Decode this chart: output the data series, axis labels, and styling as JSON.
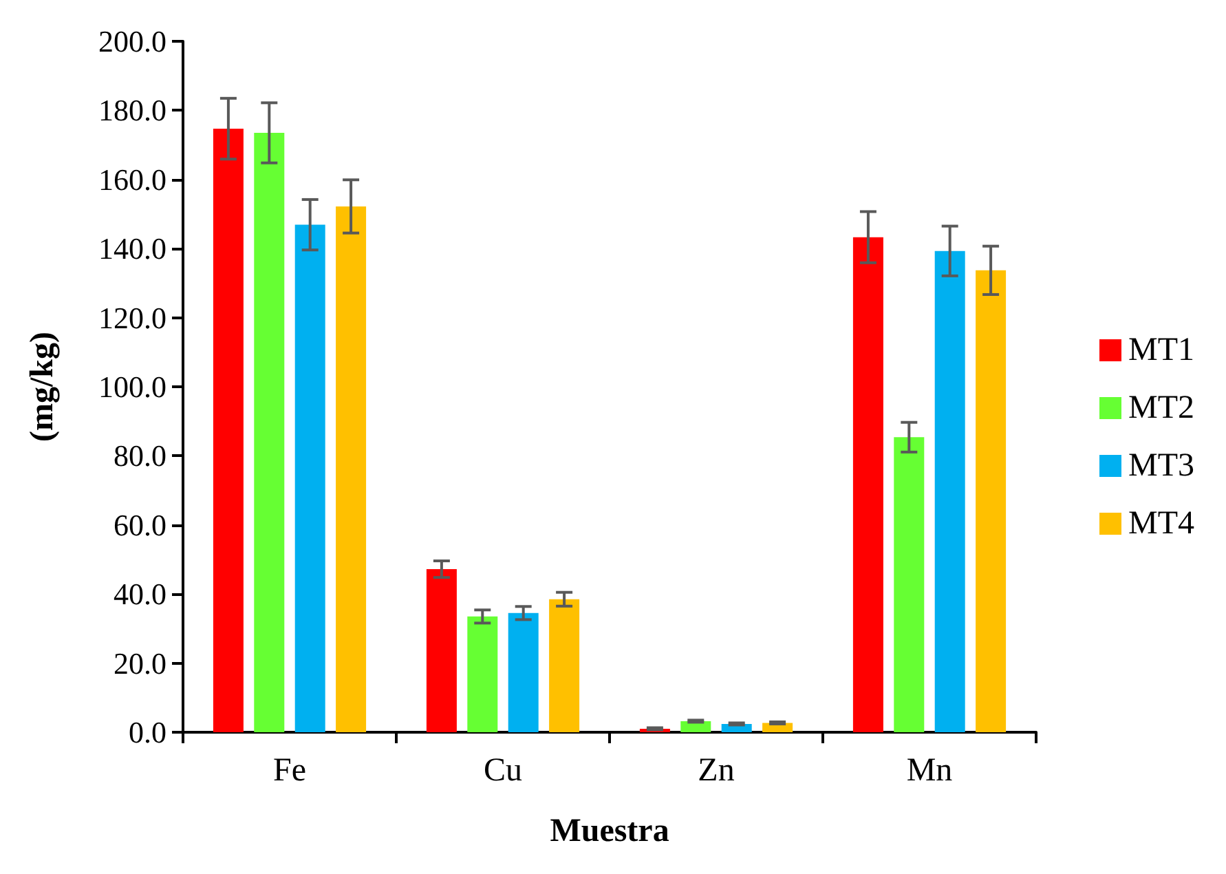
{
  "chart_data": {
    "type": "bar",
    "xlabel": "Muestra",
    "ylabel": "(mg/kg)",
    "categories": [
      "Fe",
      "Cu",
      "Zn",
      "Mn"
    ],
    "series": [
      {
        "name": "MT1",
        "color": "#ff0000",
        "values": [
          174.7,
          47.2,
          1.0,
          143.3
        ],
        "errors": [
          8.8,
          2.4,
          0.3,
          7.4
        ]
      },
      {
        "name": "MT2",
        "color": "#66ff33",
        "values": [
          173.5,
          33.5,
          3.2,
          85.4
        ],
        "errors": [
          8.7,
          1.9,
          0.3,
          4.3
        ]
      },
      {
        "name": "MT3",
        "color": "#00b0f0",
        "values": [
          146.9,
          34.5,
          2.4,
          139.3
        ],
        "errors": [
          7.3,
          1.9,
          0.3,
          7.2
        ]
      },
      {
        "name": "MT4",
        "color": "#ffc000",
        "values": [
          152.2,
          38.5,
          2.7,
          133.7
        ],
        "errors": [
          7.7,
          2.0,
          0.3,
          7.0
        ]
      }
    ],
    "ylim": [
      0,
      200
    ],
    "yticks": [
      {
        "value": 0,
        "label": "0.0"
      },
      {
        "value": 20,
        "label": "20.0"
      },
      {
        "value": 40,
        "label": "40.0"
      },
      {
        "value": 60,
        "label": "60.0"
      },
      {
        "value": 80,
        "label": "80.0"
      },
      {
        "value": 100,
        "label": "100.0"
      },
      {
        "value": 120,
        "label": "120.0"
      },
      {
        "value": 140,
        "label": "140.0"
      },
      {
        "value": 160,
        "label": "160.0"
      },
      {
        "value": 180,
        "label": "180.0"
      },
      {
        "value": 200,
        "label": "200.0"
      }
    ],
    "grid": false,
    "legend": "right"
  }
}
